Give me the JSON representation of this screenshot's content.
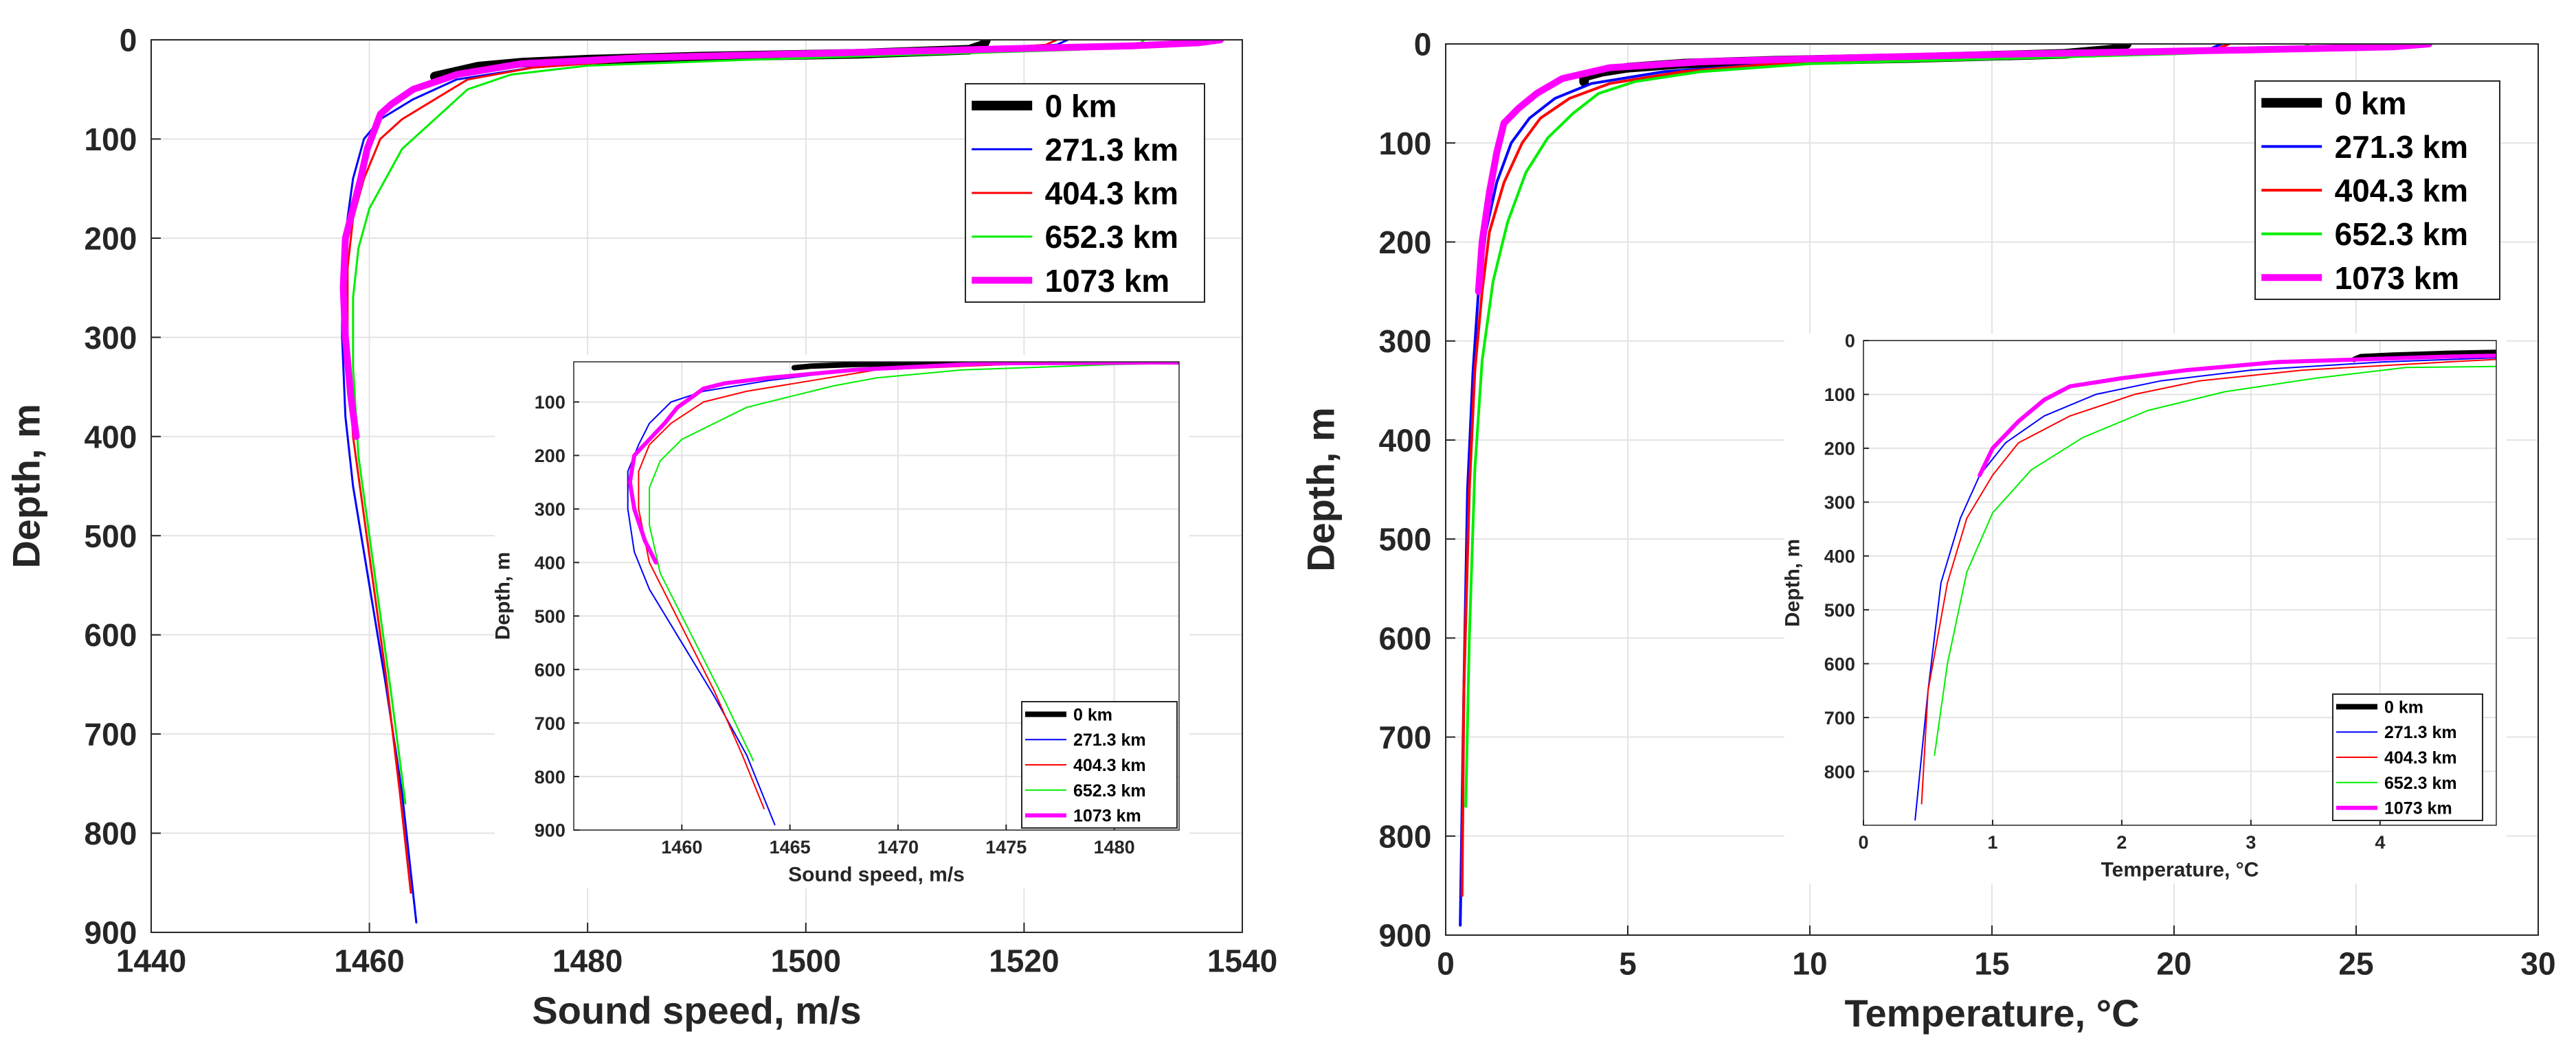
{
  "chart_data": [
    {
      "type": "line",
      "id": "main-sound",
      "xlabel": "Sound speed, m/s",
      "ylabel": "Depth, m",
      "xlim": [
        1440,
        1540
      ],
      "ylim": [
        900,
        0
      ],
      "xticks": [
        1440,
        1460,
        1480,
        1500,
        1520,
        1540
      ],
      "yticks": [
        0,
        100,
        200,
        300,
        400,
        500,
        600,
        700,
        800,
        900
      ],
      "grid": true,
      "legend_position": "top-right",
      "series": [
        {
          "name": "0 km",
          "color": "#000000",
          "x": [
            1516.5,
            1516.3,
            1515,
            1505,
            1490,
            1480,
            1474,
            1470,
            1468,
            1466
          ],
          "y": [
            0,
            5,
            10,
            14,
            17,
            20,
            23,
            27,
            32,
            37
          ]
        },
        {
          "name": "271.3 km",
          "color": "#0000ff",
          "x": [
            1524,
            1523,
            1515,
            1500,
            1485,
            1475,
            1468,
            1464,
            1461,
            1459.5,
            1458.5,
            1458,
            1457.5,
            1457.5,
            1457.8,
            1458.5,
            1460,
            1461.5,
            1463,
            1464.3
          ],
          "y": [
            0,
            5,
            10,
            15,
            20,
            28,
            40,
            60,
            80,
            100,
            140,
            180,
            230,
            300,
            380,
            450,
            550,
            650,
            760,
            890
          ]
        },
        {
          "name": "404.3 km",
          "color": "#ff0000",
          "x": [
            1523,
            1522,
            1515,
            1500,
            1485,
            1475,
            1469,
            1466,
            1463,
            1461,
            1459.5,
            1458.5,
            1458,
            1458,
            1458.5,
            1460,
            1461.5,
            1462.8,
            1463.8
          ],
          "y": [
            0,
            5,
            10,
            15,
            20,
            28,
            40,
            60,
            80,
            100,
            140,
            180,
            230,
            300,
            400,
            520,
            640,
            760,
            860
          ]
        },
        {
          "name": "652.3 km",
          "color": "#00ee00",
          "x": [
            1531,
            1530.5,
            1525,
            1510,
            1495,
            1480,
            1473,
            1469,
            1467,
            1465,
            1463,
            1461.5,
            1460,
            1459,
            1458.5,
            1458.5,
            1459,
            1460.5,
            1462,
            1463.3
          ],
          "y": [
            0,
            5,
            10,
            15,
            20,
            26,
            35,
            50,
            70,
            90,
            110,
            140,
            170,
            210,
            260,
            330,
            420,
            540,
            660,
            770
          ]
        },
        {
          "name": "1073 km",
          "color": "#ff00ff",
          "x": [
            1538,
            1536,
            1530,
            1515,
            1500,
            1485,
            1474,
            1468,
            1464,
            1462,
            1461,
            1460.5,
            1459.8,
            1459.2,
            1458.5,
            1457.8,
            1457.6,
            1457.8,
            1458.3,
            1458.8
          ],
          "y": [
            0,
            3,
            6,
            10,
            14,
            18,
            24,
            35,
            50,
            65,
            75,
            90,
            110,
            140,
            170,
            200,
            250,
            300,
            360,
            400
          ]
        }
      ]
    },
    {
      "type": "line",
      "id": "inset-sound",
      "xlabel": "Sound speed, m/s",
      "ylabel": "Depth, m",
      "xlim": [
        1455,
        1483
      ],
      "ylim": [
        900,
        25
      ],
      "xticks": [
        1460,
        1465,
        1470,
        1475,
        1480
      ],
      "yticks": [
        100,
        200,
        300,
        400,
        500,
        600,
        700,
        800,
        900
      ],
      "grid": true,
      "legend_position": "bottom-right",
      "series": [
        {
          "name": "0 km",
          "color": "#000000",
          "x": [
            1483,
            1478,
            1472,
            1468,
            1466,
            1465.2
          ],
          "y": [
            25,
            25,
            27,
            30,
            33,
            36
          ]
        },
        {
          "name": "271.3 km",
          "color": "#0000ff",
          "x": [
            1483,
            1475,
            1468,
            1464,
            1461,
            1459.5,
            1458.5,
            1458,
            1457.5,
            1457.5,
            1457.8,
            1458.5,
            1460,
            1461.5,
            1463,
            1464.3
          ],
          "y": [
            28,
            30,
            40,
            60,
            80,
            100,
            140,
            180,
            230,
            300,
            380,
            450,
            550,
            650,
            760,
            890
          ]
        },
        {
          "name": "404.3 km",
          "color": "#ff0000",
          "x": [
            1483,
            1475,
            1469,
            1466,
            1463,
            1461,
            1459.5,
            1458.5,
            1458,
            1458,
            1458.5,
            1460,
            1461.5,
            1462.8,
            1463.8
          ],
          "y": [
            28,
            30,
            40,
            60,
            80,
            100,
            140,
            180,
            230,
            300,
            400,
            520,
            640,
            760,
            860
          ]
        },
        {
          "name": "652.3 km",
          "color": "#00ee00",
          "x": [
            1483,
            1480,
            1473,
            1469,
            1467,
            1465,
            1463,
            1461.5,
            1460,
            1459,
            1458.5,
            1458.5,
            1459,
            1460.5,
            1462,
            1463.3
          ],
          "y": [
            28,
            30,
            40,
            55,
            70,
            90,
            110,
            140,
            170,
            210,
            260,
            330,
            420,
            540,
            660,
            770
          ]
        },
        {
          "name": "1073 km",
          "color": "#ff00ff",
          "x": [
            1483,
            1474,
            1468,
            1464,
            1462,
            1461,
            1460.5,
            1459.8,
            1459.2,
            1458.5,
            1457.8,
            1457.6,
            1457.8,
            1458.3,
            1458.8
          ],
          "y": [
            26,
            28,
            40,
            55,
            65,
            75,
            90,
            110,
            140,
            170,
            200,
            250,
            300,
            360,
            400
          ]
        }
      ]
    },
    {
      "type": "line",
      "id": "main-temperature",
      "xlabel": "Temperature, °C",
      "ylabel": "Depth, m",
      "xlim": [
        0,
        30
      ],
      "ylim": [
        900,
        0
      ],
      "xticks": [
        0,
        5,
        10,
        15,
        20,
        25,
        30
      ],
      "yticks": [
        0,
        100,
        200,
        300,
        400,
        500,
        600,
        700,
        800,
        900
      ],
      "grid": true,
      "legend_position": "top-right",
      "series": [
        {
          "name": "0 km",
          "color": "#000000",
          "x": [
            18.7,
            18.5,
            17,
            13,
            9,
            6.5,
            5,
            4.3,
            3.8,
            3.8
          ],
          "y": [
            0,
            5,
            10,
            14,
            17,
            20,
            24,
            28,
            33,
            38
          ]
        },
        {
          "name": "271.3 km",
          "color": "#0000ff",
          "x": [
            21.3,
            21,
            18,
            13,
            9,
            6,
            4,
            3,
            2.3,
            1.8,
            1.4,
            1.1,
            0.9,
            0.75,
            0.6,
            0.5,
            0.4
          ],
          "y": [
            0,
            5,
            10,
            15,
            20,
            28,
            40,
            55,
            75,
            100,
            140,
            190,
            250,
            330,
            450,
            650,
            890
          ]
        },
        {
          "name": "404.3 km",
          "color": "#ff0000",
          "x": [
            21.5,
            21.2,
            18,
            13,
            9,
            6.5,
            4.5,
            3.4,
            2.6,
            2.1,
            1.6,
            1.2,
            1,
            0.8,
            0.65,
            0.5,
            0.45
          ],
          "y": [
            0,
            5,
            10,
            15,
            20,
            28,
            40,
            55,
            75,
            100,
            140,
            190,
            250,
            330,
            450,
            650,
            860
          ]
        },
        {
          "name": "652.3 km",
          "color": "#00ee00",
          "x": [
            23.7,
            23.5,
            20,
            15,
            10,
            7,
            5.2,
            4.2,
            3.5,
            2.8,
            2.2,
            1.7,
            1.3,
            1,
            0.8,
            0.65,
            0.55
          ],
          "y": [
            0,
            5,
            10,
            15,
            20,
            28,
            38,
            50,
            70,
            95,
            130,
            180,
            240,
            320,
            430,
            600,
            770
          ]
        },
        {
          "name": "1073 km",
          "color": "#ff00ff",
          "x": [
            27,
            26,
            22,
            16,
            11,
            7,
            4.5,
            3.2,
            2.5,
            2,
            1.6,
            1.4,
            1.2,
            1,
            0.9
          ],
          "y": [
            0,
            3,
            6,
            10,
            14,
            18,
            24,
            35,
            50,
            65,
            80,
            110,
            150,
            200,
            250
          ]
        }
      ]
    },
    {
      "type": "line",
      "id": "inset-temperature",
      "xlabel": "Temperature, °C",
      "ylabel": "Depth, m",
      "xlim": [
        0,
        4.9
      ],
      "ylim": [
        900,
        0
      ],
      "xticks": [
        0,
        1,
        2,
        3,
        4
      ],
      "yticks": [
        0,
        100,
        200,
        300,
        400,
        500,
        600,
        700,
        800
      ],
      "grid": true,
      "legend_position": "bottom-right",
      "series": [
        {
          "name": "0 km",
          "color": "#000000",
          "x": [
            4.9,
            4.5,
            4.1,
            3.85,
            3.8
          ],
          "y": [
            22,
            24,
            27,
            30,
            35
          ]
        },
        {
          "name": "271.3 km",
          "color": "#0000ff",
          "x": [
            4.9,
            4,
            3,
            2.3,
            1.8,
            1.4,
            1.1,
            0.9,
            0.75,
            0.6,
            0.5,
            0.4
          ],
          "y": [
            32,
            40,
            55,
            75,
            100,
            140,
            190,
            250,
            330,
            450,
            650,
            890
          ]
        },
        {
          "name": "404.3 km",
          "color": "#ff0000",
          "x": [
            4.9,
            4.5,
            3.4,
            2.6,
            2.1,
            1.6,
            1.2,
            1,
            0.8,
            0.65,
            0.5,
            0.45
          ],
          "y": [
            35,
            40,
            55,
            75,
            100,
            140,
            190,
            250,
            330,
            450,
            650,
            860
          ]
        },
        {
          "name": "652.3 km",
          "color": "#00ee00",
          "x": [
            4.9,
            4.2,
            3.5,
            2.8,
            2.2,
            1.7,
            1.3,
            1,
            0.8,
            0.65,
            0.55
          ],
          "y": [
            48,
            50,
            70,
            95,
            130,
            180,
            240,
            320,
            430,
            600,
            770
          ]
        },
        {
          "name": "1073 km",
          "color": "#ff00ff",
          "x": [
            4.9,
            4.5,
            3.2,
            2.5,
            2,
            1.6,
            1.4,
            1.2,
            1,
            0.9
          ],
          "y": [
            28,
            30,
            40,
            55,
            70,
            85,
            110,
            150,
            200,
            250
          ]
        }
      ]
    }
  ]
}
